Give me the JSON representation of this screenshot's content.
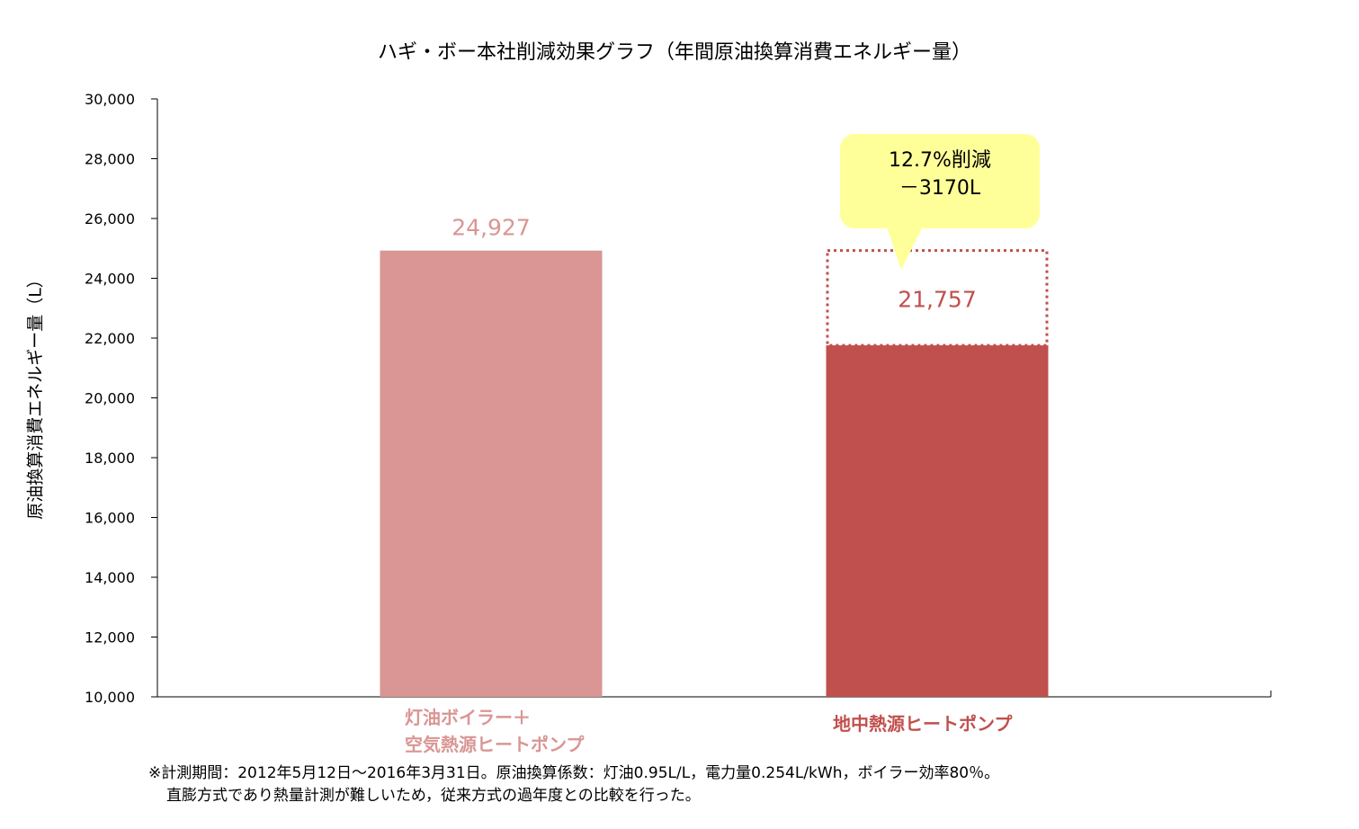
{
  "colors": {
    "bar1": "#d99694",
    "bar2": "#c0504d",
    "callout": "#ffff99",
    "axis": "#000000"
  },
  "chart_data": {
    "type": "bar",
    "title": "ハギ・ボー本社削減効果グラフ（年間原油換算消費エネルギー量）",
    "ylabel": "原油換算消費エネルギー量（L）",
    "xlabel": "",
    "ylim": [
      10000,
      30000
    ],
    "yticks": [
      10000,
      12000,
      14000,
      16000,
      18000,
      20000,
      22000,
      24000,
      26000,
      28000,
      30000
    ],
    "ytick_labels": [
      "10,000",
      "12,000",
      "14,000",
      "16,000",
      "18,000",
      "20,000",
      "22,000",
      "24,000",
      "26,000",
      "28,000",
      "30,000"
    ],
    "categories": [
      "灯油ボイラー＋\n空気熱源ヒートポンプ",
      "地中熱源ヒートポンプ"
    ],
    "category_lines": [
      [
        "灯油ボイラー＋",
        "空気熱源ヒートポンプ"
      ],
      [
        "地中熱源ヒートポンプ"
      ]
    ],
    "values": [
      24927,
      21757
    ],
    "value_labels": [
      "24,927",
      "21,757"
    ],
    "reference_outline_value": 24927,
    "annotation": {
      "line1": "12.7%削減",
      "line2": "－3170L"
    }
  },
  "footnote": {
    "line1": "※計測期間：2012年5月12日～2016年3月31日。原油換算係数：灯油0.95L/L，電力量0.254L/kWh，ボイラー効率80％。",
    "line2": "直膨方式であり熱量計測が難しいため，従来方式の過年度との比較を行った。"
  }
}
